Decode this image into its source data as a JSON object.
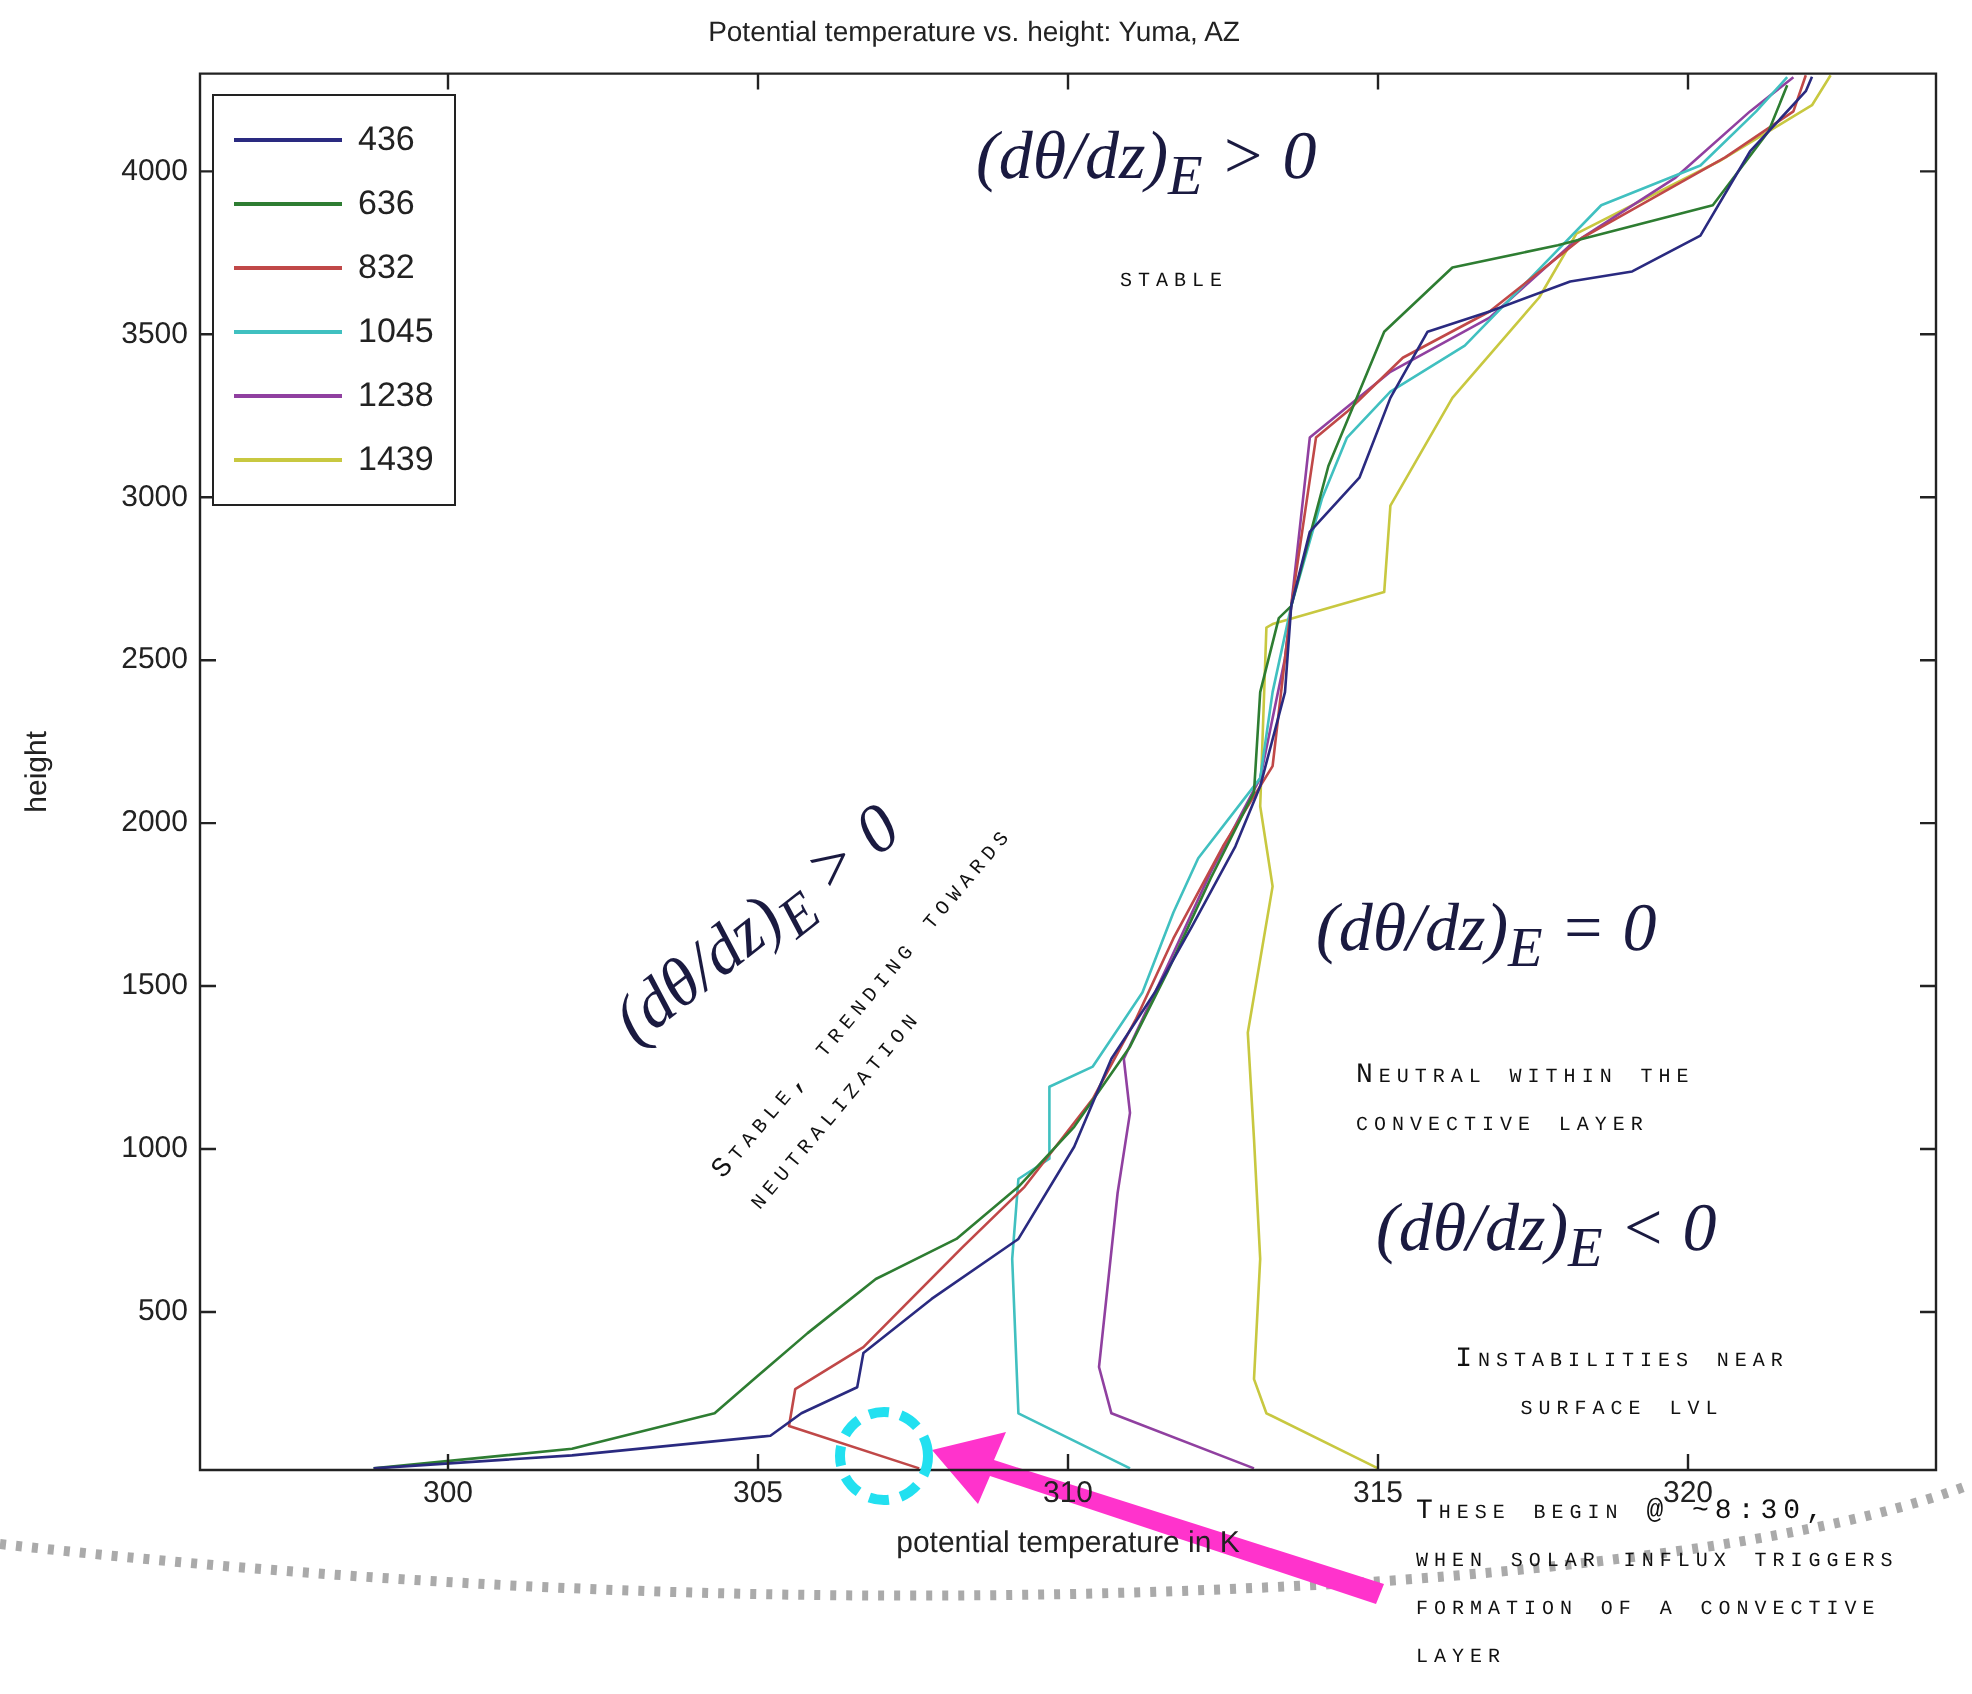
{
  "chart_data": {
    "type": "line",
    "title": "Potential temperature vs. height: Yuma, AZ",
    "xlabel": "potential temperature in K",
    "ylabel": "height",
    "xlim": [
      296,
      324
    ],
    "ylim": [
      15,
      4300
    ],
    "xticks": [
      300,
      305,
      310,
      315,
      320
    ],
    "yticks": [
      500,
      1000,
      1500,
      2000,
      2500,
      3000,
      3500,
      4000
    ],
    "grid": false,
    "legend": "top left",
    "line_style": "solid",
    "marker": "none",
    "series": [
      {
        "name": "436",
        "color": "#2a2a80",
        "x": [
          298.8,
          302,
          305.2,
          305.7,
          306.6,
          306.7,
          307.8,
          309.2,
          310.1,
          310.7,
          311.4,
          312.0,
          312.7,
          313.1,
          313.5,
          313.6,
          313.9,
          314.7,
          315.2,
          315.8,
          316.8,
          318.1,
          319.1,
          320.2,
          321.0,
          321.9,
          322.0
        ],
        "values": [
          20,
          60,
          120,
          189,
          269,
          374,
          540,
          724,
          1007,
          1277,
          1480,
          1683,
          1929,
          2113,
          2402,
          2666,
          2894,
          3060,
          3305,
          3508,
          3570,
          3662,
          3693,
          3803,
          4061,
          4246,
          4290
        ]
      },
      {
        "name": "636",
        "color": "#2e7d32",
        "x": [
          298.8,
          302,
          304.3,
          304.9,
          305.8,
          306.9,
          308.2,
          309.2,
          310.1,
          311.0,
          311.6,
          312.3,
          313.0,
          313.1,
          313.4,
          313.6,
          314.2,
          315.1,
          316.2,
          317.9,
          320.4,
          321.3,
          321.6
        ],
        "values": [
          20,
          80,
          189,
          288,
          435,
          601,
          724,
          884,
          1068,
          1314,
          1542,
          1830,
          2095,
          2402,
          2629,
          2666,
          3096,
          3508,
          3705,
          3773,
          3896,
          4123,
          4264
        ]
      },
      {
        "name": "832",
        "color": "#c04848",
        "x": [
          307.6,
          305.5,
          305.6,
          306.7,
          308.3,
          309.3,
          310.4,
          311.1,
          311.7,
          312.5,
          313.3,
          313.5,
          313.6,
          314.0,
          314.5,
          315.4,
          316.8,
          318.3,
          320.6,
          321.7,
          321.9
        ],
        "values": [
          20,
          150,
          263,
          392,
          699,
          884,
          1154,
          1400,
          1646,
          1929,
          2175,
          2506,
          2666,
          3183,
          3262,
          3428,
          3570,
          3797,
          4043,
          4184,
          4295
        ]
      },
      {
        "name": "1045",
        "color": "#40c0c0",
        "x": [
          311.0,
          309.2,
          309.1,
          309.2,
          309.7,
          309.7,
          310.4,
          311.2,
          311.7,
          312.1,
          313.1,
          313.3,
          313.6,
          314.1,
          314.5,
          315.2,
          316.4,
          318.6,
          320.2,
          321.1,
          321.6
        ],
        "values": [
          20,
          189,
          663,
          908,
          970,
          1191,
          1253,
          1480,
          1726,
          1892,
          2138,
          2402,
          2666,
          2998,
          3183,
          3324,
          3465,
          3896,
          4018,
          4184,
          4289
        ]
      },
      {
        "name": "1238",
        "color": "#9040a0",
        "x": [
          313.0,
          310.7,
          310.5,
          310.8,
          311.0,
          310.9,
          311.6,
          312.3,
          313.1,
          313.5,
          313.6,
          313.9,
          315.2,
          316.8,
          318.1,
          319.8,
          321.0,
          321.7
        ],
        "values": [
          20,
          189,
          331,
          865,
          1111,
          1277,
          1560,
          1849,
          2138,
          2506,
          2666,
          3183,
          3385,
          3551,
          3773,
          3981,
          4184,
          4289
        ]
      },
      {
        "name": "1439",
        "color": "#c8c840",
        "x": [
          315.0,
          313.2,
          313.0,
          313.1,
          313.0,
          312.9,
          313.3,
          313.1,
          313.2,
          313.3,
          315.1,
          315.2,
          316.2,
          317.6,
          318.2,
          320.5,
          322.0,
          322.3
        ],
        "values": [
          20,
          189,
          294,
          663,
          1031,
          1357,
          1806,
          2052,
          2600,
          2611,
          2709,
          2974,
          3305,
          3613,
          3809,
          4031,
          4203,
          4295
        ]
      }
    ],
    "annotations": [
      "(dθ/dz)$_{E}$ > 0",
      "stable",
      "(dθ/dz)$_{E}$ > 0",
      "Stable, trending towards neutralization",
      "(dθ/dz)$_{E}$ = 0",
      "Neutral within the convective layer",
      "(dθ/dz)$_{E}$ < 0",
      "Instabilities near surface lvl",
      "These begin @ ~8:30, when solar influx triggers formation of a convective layer"
    ]
  }
}
